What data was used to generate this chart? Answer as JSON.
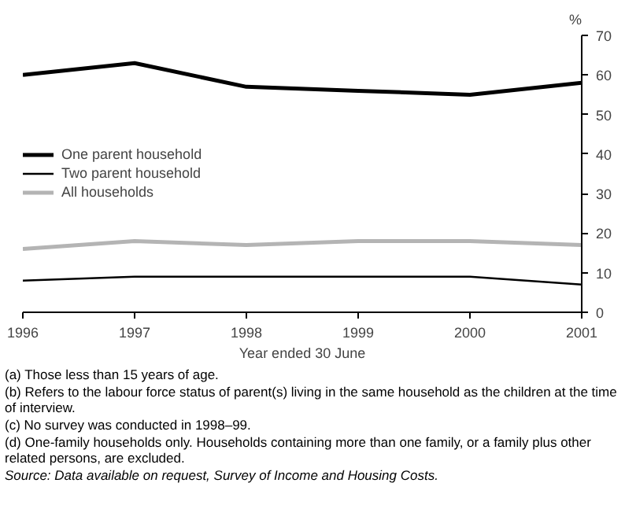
{
  "chart_data": {
    "type": "line",
    "ylabel": "%",
    "xlabel": "Year ended 30 June",
    "x": [
      1996,
      1997,
      1998,
      1999,
      2000,
      2001
    ],
    "xlim": [
      1996,
      2001
    ],
    "xticks": [
      1996,
      1997,
      1998,
      1999,
      2000,
      2001
    ],
    "ylim": [
      0,
      70
    ],
    "yticks": [
      0,
      10,
      20,
      30,
      40,
      50,
      60,
      70
    ],
    "grid": false,
    "legend": "left",
    "series": [
      {
        "name": "One parent household",
        "color": "#000000",
        "values": [
          60,
          63,
          57,
          56,
          55,
          58
        ]
      },
      {
        "name": "Two parent household",
        "color": "#000000",
        "values": [
          8,
          9,
          9,
          9,
          9,
          7
        ]
      },
      {
        "name": "All households",
        "color": "#b4b4b4",
        "values": [
          16,
          18,
          17,
          18,
          18,
          17
        ]
      }
    ],
    "annotations": [
      "(a) Those less than 15 years of age.",
      "(b) Refers to the labour force status of parent(s) living in the same household as the children at the time of interview.",
      "(c) No survey was conducted in 1998–99.",
      "(d) One-family households only. Households containing more than one family, or a family plus other related persons, are excluded.",
      "Source: Data available on request, Survey of Income and Housing Costs."
    ]
  }
}
